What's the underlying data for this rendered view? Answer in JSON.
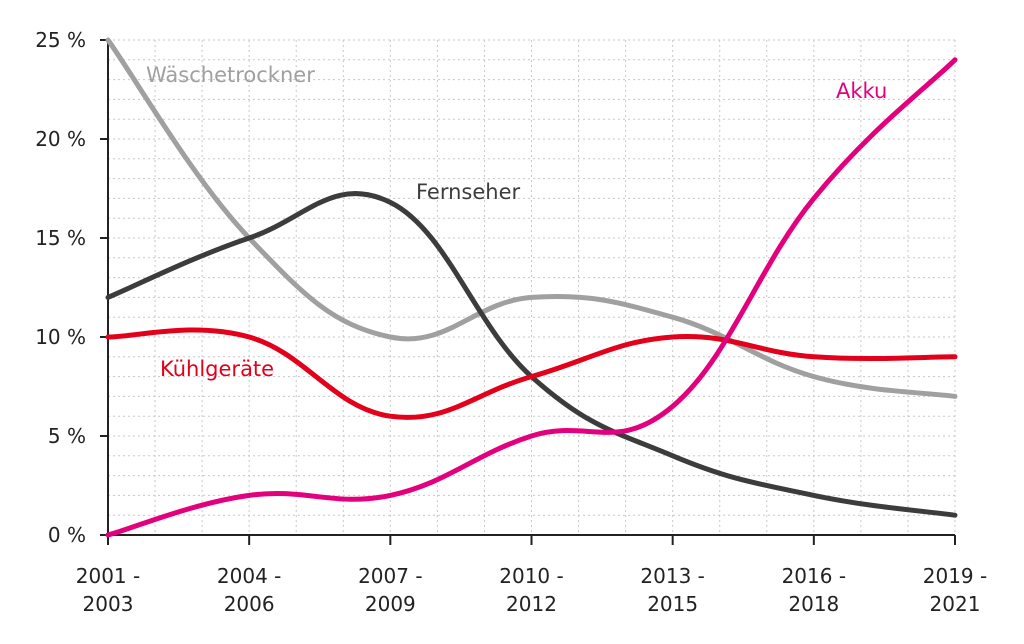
{
  "chart_data": {
    "type": "line",
    "categories": [
      [
        "2001 -",
        "2003"
      ],
      [
        "2004 -",
        "2006"
      ],
      [
        "2007 -",
        "2009"
      ],
      [
        "2010 -",
        "2012"
      ],
      [
        "2013 -",
        "2015"
      ],
      [
        "2016 -",
        "2018"
      ],
      [
        "2019 -",
        "2021"
      ]
    ],
    "y_ticks": [
      "0 %",
      "5 %",
      "10 %",
      "15 %",
      "20 %",
      "25 %"
    ],
    "ylim": [
      0,
      25
    ],
    "grid": true,
    "series": [
      {
        "name": "Wäschetrockner",
        "color": "#a0a0a0",
        "values": [
          25,
          15,
          10,
          12,
          11,
          8,
          7
        ]
      },
      {
        "name": "Fernseher",
        "color": "#3c3c3c",
        "values": [
          12,
          15,
          16.8,
          8,
          4,
          2,
          1
        ]
      },
      {
        "name": "Kühlgeräte",
        "color": "#e2001a",
        "values": [
          10,
          10,
          6,
          8,
          10,
          9,
          9
        ]
      },
      {
        "name": "Akku",
        "color": "#e3007d",
        "values": [
          0,
          2,
          2,
          5,
          6.5,
          17,
          24
        ]
      }
    ]
  }
}
